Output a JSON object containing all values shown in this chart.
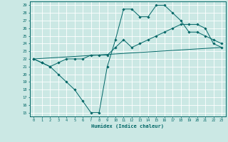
{
  "xlabel": "Humidex (Indice chaleur)",
  "bg_color": "#cbe8e4",
  "line_color": "#006666",
  "grid_color": "#ffffff",
  "xlim": [
    -0.5,
    23.5
  ],
  "ylim": [
    14.5,
    29.5
  ],
  "yticks": [
    15,
    16,
    17,
    18,
    19,
    20,
    21,
    22,
    23,
    24,
    25,
    26,
    27,
    28,
    29
  ],
  "xticks": [
    0,
    1,
    2,
    3,
    4,
    5,
    6,
    7,
    8,
    9,
    10,
    11,
    12,
    13,
    14,
    15,
    16,
    17,
    18,
    19,
    20,
    21,
    22,
    23
  ],
  "line1_x": [
    0,
    1,
    2,
    3,
    4,
    5,
    6,
    7,
    8,
    9,
    10,
    11,
    12,
    13,
    14,
    15,
    16,
    17,
    18,
    19,
    20,
    21,
    22,
    23
  ],
  "line1_y": [
    22.0,
    21.5,
    21.0,
    20.0,
    19.0,
    18.0,
    16.5,
    15.0,
    15.0,
    21.0,
    24.5,
    28.5,
    28.5,
    27.5,
    27.5,
    29.0,
    29.0,
    28.0,
    27.0,
    25.5,
    25.5,
    25.0,
    24.5,
    24.0
  ],
  "line2_x": [
    0,
    1,
    2,
    3,
    4,
    5,
    6,
    7,
    8,
    9,
    10,
    11,
    12,
    13,
    14,
    15,
    16,
    17,
    18,
    19,
    20,
    21,
    22,
    23
  ],
  "line2_y": [
    22.0,
    21.5,
    21.0,
    21.5,
    22.0,
    22.0,
    22.0,
    22.5,
    22.5,
    22.5,
    23.5,
    24.5,
    23.5,
    24.0,
    24.5,
    25.0,
    25.5,
    26.0,
    26.5,
    26.5,
    26.5,
    26.0,
    24.0,
    23.5
  ],
  "line3_x": [
    0,
    23
  ],
  "line3_y": [
    22.0,
    23.5
  ]
}
